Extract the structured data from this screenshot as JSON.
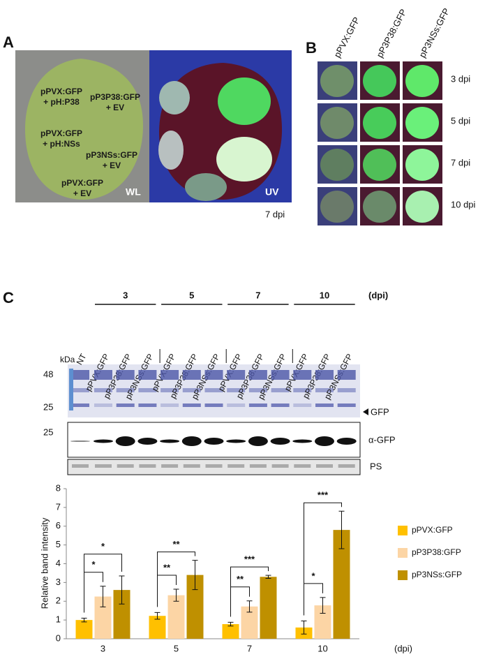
{
  "panel_a": {
    "label": "A",
    "leaf_labels": [
      [
        "pPVX:GFP",
        "+ pH:P38"
      ],
      [
        "pP3P38:GFP",
        "+ EV"
      ],
      [
        "pPVX:GFP",
        "+ pH:NSs"
      ],
      [
        "pP3NSs:GFP",
        "+ EV"
      ],
      [
        "pPVX:GFP",
        "+ EV"
      ]
    ],
    "light_labels": [
      "WL",
      "UV"
    ],
    "time": "7 dpi"
  },
  "panel_b": {
    "label": "B",
    "columns": [
      "pPVX:GFP",
      "pP3P38:GFP",
      "pP3NSs:GFP"
    ],
    "rows": [
      "3 dpi",
      "5 dpi",
      "7 dpi",
      "10 dpi"
    ]
  },
  "panel_c": {
    "label": "C",
    "dpi_groups": [
      "3",
      "5",
      "7",
      "10"
    ],
    "dpi_unit": "(dpi)",
    "lanes": [
      "NT",
      "pPVX:GFP",
      "pP3P38:GFP",
      "pP3NSs:GFP",
      "pPVX:GFP",
      "pP3P38:GFP",
      "pP3NSs:GFP",
      "pPVX:GFP",
      "pP3P38:GFP",
      "pP3NSs:GFP",
      "pPVX:GFP",
      "pP3P38:GFP",
      "pP3NSs:GFP"
    ],
    "kda_label": "kDa",
    "markers": [
      48,
      25
    ],
    "gfp_arrow": "GFP",
    "blot_marker": 25,
    "blot_label": "α-GFP",
    "stain_label": "PS"
  },
  "chart_data": {
    "type": "bar",
    "y_label": "Relative band intensity",
    "x_label": "(dpi)",
    "categories": [
      "3",
      "5",
      "7",
      "10"
    ],
    "ylim": [
      0,
      8
    ],
    "yticks": [
      0,
      1,
      2,
      3,
      4,
      5,
      6,
      7,
      8
    ],
    "series": [
      {
        "name": "pPVX:GFP",
        "color": "#ffc000",
        "values": [
          1.0,
          1.22,
          0.78,
          0.6
        ],
        "errors": [
          0.1,
          0.18,
          0.1,
          0.35
        ]
      },
      {
        "name": "pP3P38:GFP",
        "color": "#fcd5a5",
        "values": [
          2.25,
          2.32,
          1.72,
          1.78
        ],
        "errors": [
          0.55,
          0.32,
          0.3,
          0.42
        ],
        "significance": [
          "*",
          "**",
          "**",
          "*"
        ]
      },
      {
        "name": "pP3NSs:GFP",
        "color": "#bf9000",
        "values": [
          2.6,
          3.4,
          3.3,
          5.8
        ],
        "errors": [
          0.75,
          0.78,
          0.08,
          1.0
        ],
        "significance": [
          "*",
          "**",
          "***",
          "***"
        ]
      }
    ]
  }
}
